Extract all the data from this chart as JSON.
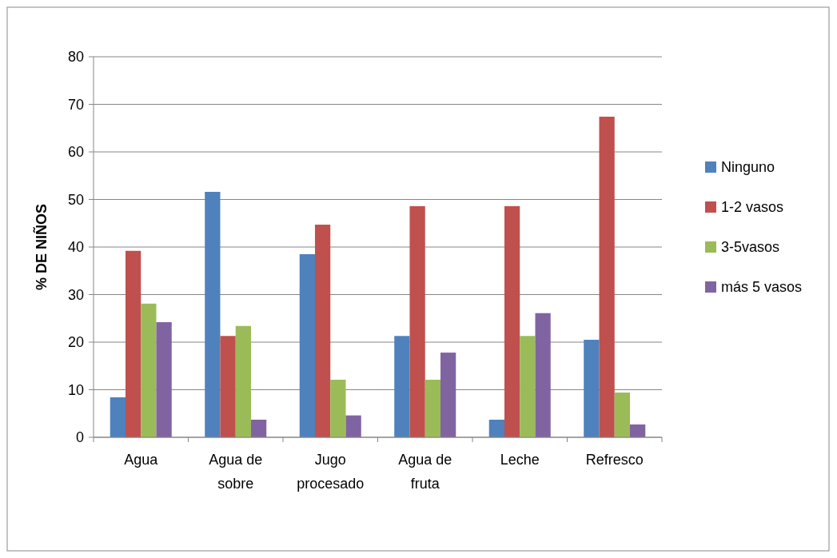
{
  "chart_data": {
    "type": "bar",
    "ylabel": "% DE NIÑOS",
    "categories": [
      "Agua",
      "Agua de sobre",
      "Jugo procesado",
      "Agua de fruta",
      "Leche",
      "Refresco"
    ],
    "series": [
      {
        "name": "Ninguno",
        "color": "#4f81bd",
        "values": [
          8.4,
          51.6,
          38.5,
          21.3,
          3.7,
          20.5
        ]
      },
      {
        "name": "1-2 vasos",
        "color": "#c0504d",
        "values": [
          39.2,
          21.3,
          44.7,
          48.6,
          48.6,
          67.4
        ]
      },
      {
        "name": "3-5vasos",
        "color": "#9bbb59",
        "values": [
          28.1,
          23.4,
          12.1,
          12.1,
          21.3,
          9.4
        ]
      },
      {
        "name": "más 5 vasos",
        "color": "#8064a2",
        "values": [
          24.2,
          3.7,
          4.6,
          17.8,
          26.1,
          2.7
        ]
      }
    ],
    "ylim": [
      0,
      80
    ],
    "yticks": [
      0,
      10,
      20,
      30,
      40,
      50,
      60,
      70,
      80
    ],
    "grid": "y",
    "legend": "right"
  }
}
